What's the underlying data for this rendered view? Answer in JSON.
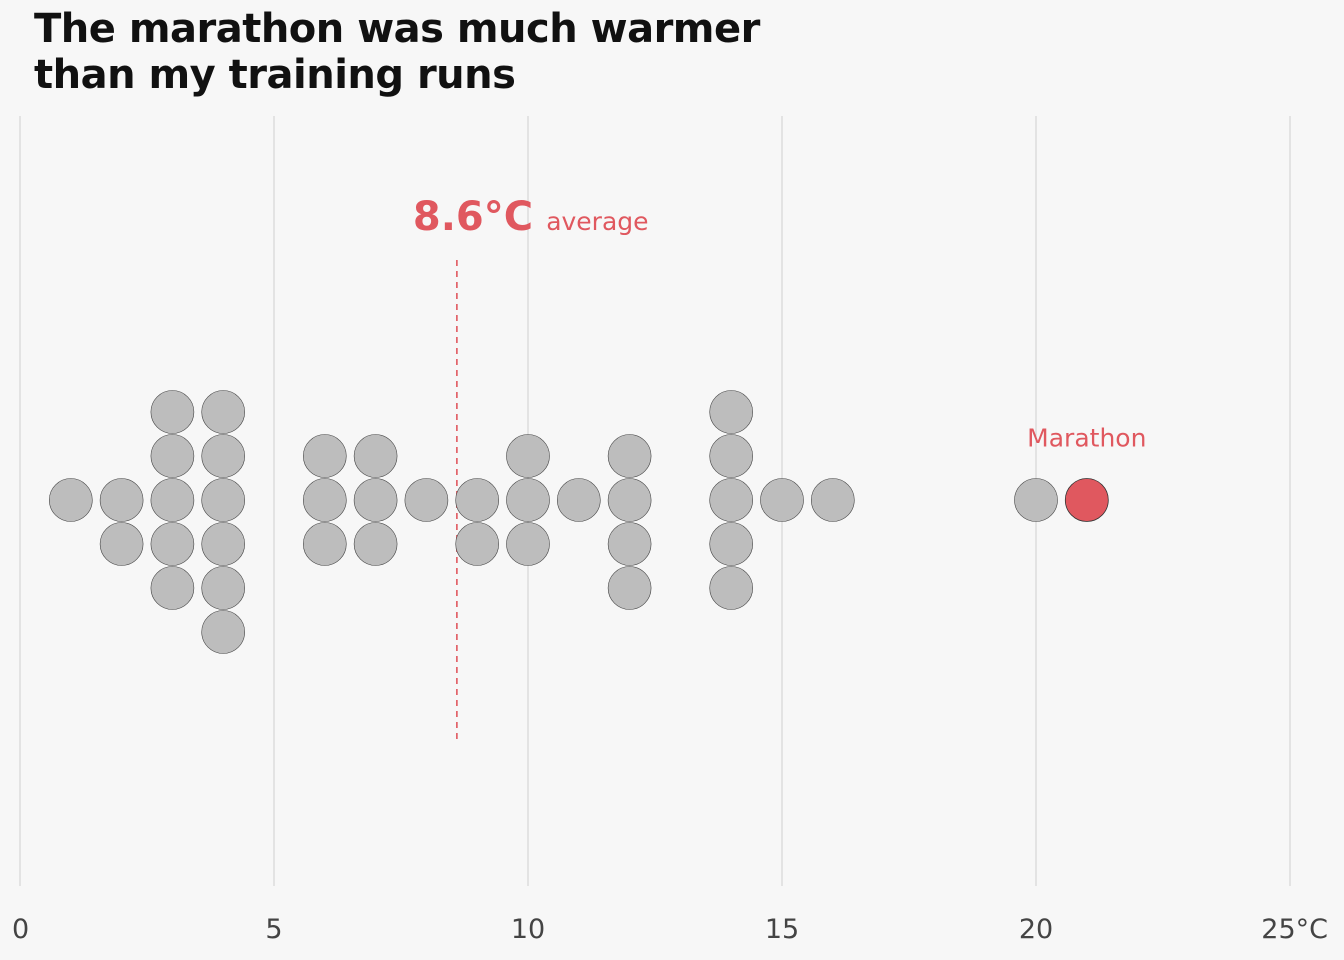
{
  "title_lines": [
    "The marathon was much warmer",
    "than my training runs"
  ],
  "colors": {
    "background": "#f7f7f7",
    "point_fill": "#bdbdbd",
    "point_stroke": "#444444",
    "highlight": "#e0585f",
    "grid": "#cfcfcf",
    "tick_text": "#444444"
  },
  "chart_data": {
    "type": "scatter",
    "variant": "beeswarm",
    "title": "The marathon was much warmer than my training runs",
    "xlabel": "",
    "ylabel": "",
    "x_unit": "°C",
    "xlim": [
      0,
      25
    ],
    "xticks": [
      0,
      5,
      10,
      15,
      20,
      25
    ],
    "xtick_labels": [
      "0",
      "5",
      "10",
      "15",
      "20",
      "25°C"
    ],
    "grid": "vertical",
    "series": [
      {
        "values": [
          1,
          2,
          2,
          3,
          3,
          3,
          3,
          3,
          4,
          4,
          4,
          4,
          4,
          4,
          6,
          6,
          6,
          7,
          7,
          7,
          8,
          9,
          9,
          10,
          10,
          10,
          11,
          12,
          12,
          12,
          12,
          14,
          14,
          14,
          14,
          14,
          15,
          16,
          20
        ]
      }
    ],
    "highlight": {
      "label": "Marathon",
      "value": 21
    },
    "average": {
      "value": 8.6,
      "value_label": "8.6°C",
      "label": "average"
    }
  }
}
